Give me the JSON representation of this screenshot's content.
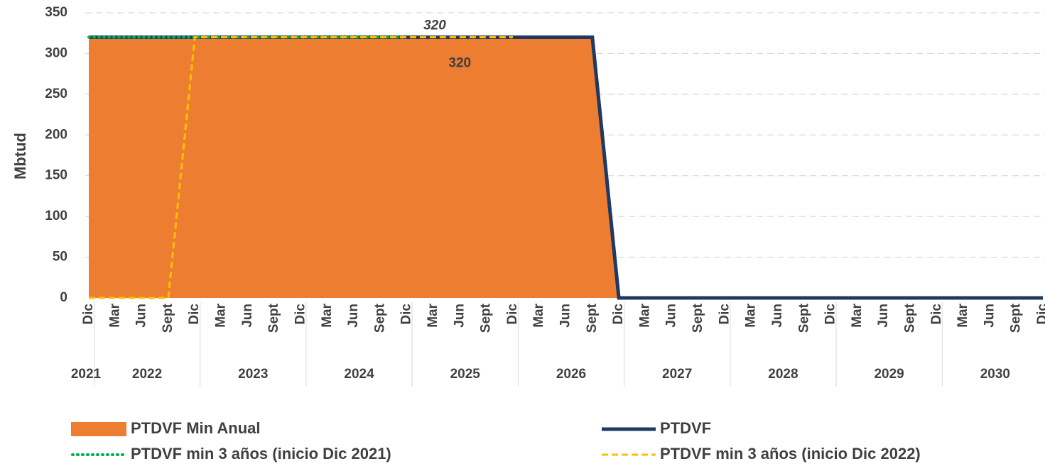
{
  "chart_data": {
    "type": "line",
    "y_label": "Mbtud",
    "categories": [
      "Dic",
      "Mar",
      "Jun",
      "Sept",
      "Dic",
      "Mar",
      "Jun",
      "Sept",
      "Dic",
      "Mar",
      "Jun",
      "Sept",
      "Dic",
      "Mar",
      "Jun",
      "Sept",
      "Dic",
      "Mar",
      "Jun",
      "Sept",
      "Dic",
      "Mar",
      "Jun",
      "Sept",
      "Dic",
      "Mar",
      "Jun",
      "Sept",
      "Dic",
      "Mar",
      "Jun",
      "Sept",
      "Dic",
      "Mar",
      "Jun",
      "Sept",
      "Dic"
    ],
    "year_labels": [
      "2021",
      "2022",
      "2023",
      "2024",
      "2025",
      "2026",
      "2027",
      "2028",
      "2029",
      "2030"
    ],
    "series": [
      {
        "name": "PTDVF Min Anual",
        "style": "area",
        "color": "#ED7D31",
        "values": [
          320,
          320,
          320,
          320,
          320,
          320,
          320,
          320,
          320,
          320,
          320,
          320,
          320,
          320,
          320,
          320,
          320,
          320,
          320,
          320,
          0,
          0,
          0,
          0,
          0,
          0,
          0,
          0,
          0,
          0,
          0,
          0,
          0,
          0,
          0,
          0,
          0
        ]
      },
      {
        "name": "PTDVF",
        "style": "solid",
        "color": "#1F3864",
        "values": [
          320,
          320,
          320,
          320,
          320,
          320,
          320,
          320,
          320,
          320,
          320,
          320,
          320,
          320,
          320,
          320,
          320,
          320,
          320,
          320,
          0,
          0,
          0,
          0,
          0,
          0,
          0,
          0,
          0,
          0,
          0,
          0,
          0,
          0,
          0,
          0,
          0
        ]
      },
      {
        "name": "PTDVF min 3 años (inicio Dic 2021)",
        "style": "dotted",
        "color": "#00B050",
        "values": [
          320,
          320,
          320,
          320,
          320,
          320,
          320,
          320,
          320,
          320,
          320,
          320,
          320,
          null,
          null,
          null,
          null,
          null,
          null,
          null,
          null,
          null,
          null,
          null,
          null,
          null,
          null,
          null,
          null,
          null,
          null,
          null,
          null,
          null,
          null,
          null,
          null
        ]
      },
      {
        "name": "PTDVF min 3 años (inicio Dic 2022)",
        "style": "dashed",
        "color": "#FFC000",
        "values": [
          0,
          0,
          0,
          0,
          320,
          320,
          320,
          320,
          320,
          320,
          320,
          320,
          320,
          320,
          320,
          320,
          320,
          null,
          null,
          null,
          null,
          null,
          null,
          null,
          null,
          null,
          null,
          null,
          null,
          null,
          null,
          null,
          null,
          null,
          null,
          null,
          null
        ]
      }
    ],
    "ylim": [
      0,
      350
    ],
    "yticks": [
      0,
      50,
      100,
      150,
      200,
      250,
      300,
      350
    ],
    "grid": true
  }
}
